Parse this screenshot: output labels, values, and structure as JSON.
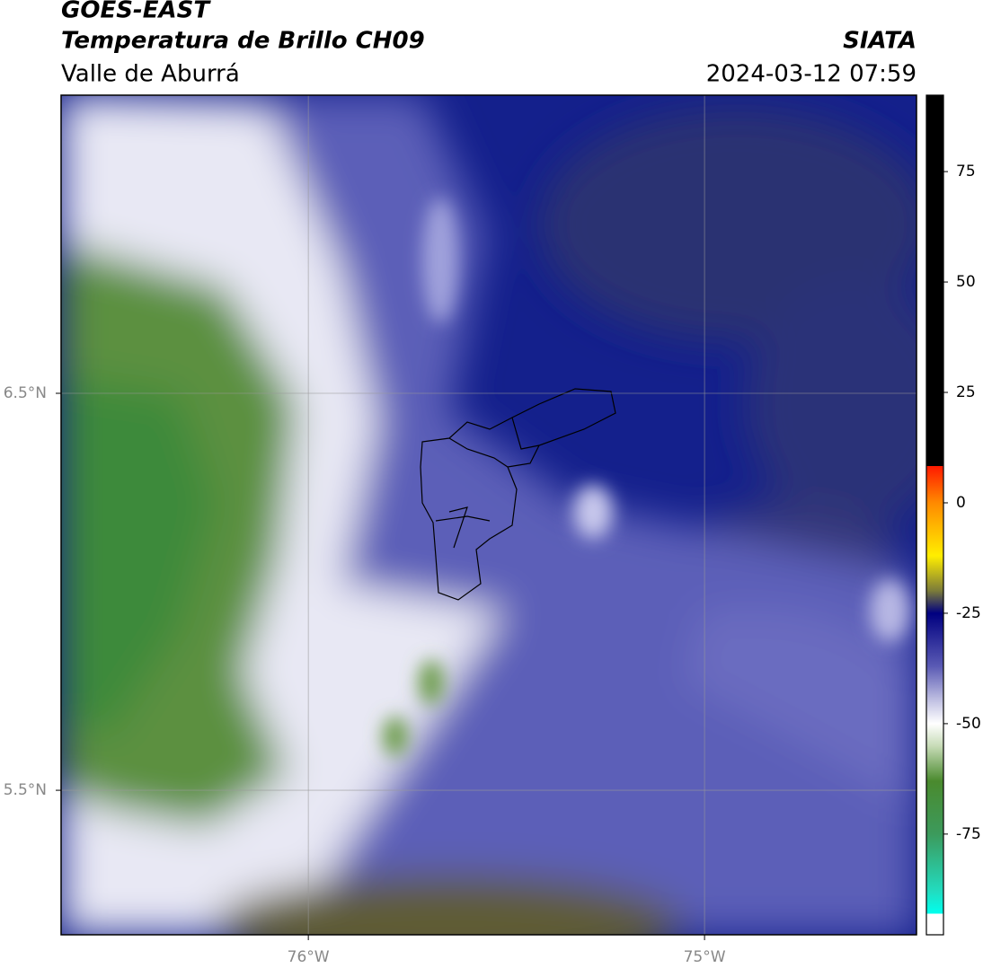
{
  "header": {
    "title": "GOES-EAST",
    "subtitle": "Temperatura de Brillo CH09",
    "region": "Valle de Aburrá",
    "agency": "SIATA",
    "timestamp": "2024-03-12 07:59"
  },
  "map": {
    "lonlim": [
      -76.624,
      -74.465
    ],
    "latlim": [
      5.136,
      7.251
    ],
    "lonticks": [
      {
        "value": -76,
        "label": "76°W"
      },
      {
        "value": -75,
        "label": "75°W"
      }
    ],
    "latticks": [
      {
        "value": 6.5,
        "label": "6.5°N"
      },
      {
        "value": 5.5,
        "label": "5.5°N"
      }
    ],
    "grid": true
  },
  "colorbar": {
    "lim": [
      -97.8,
      92.3
    ],
    "ticks": [
      75,
      50,
      25,
      0,
      -25,
      -50,
      -75
    ],
    "stops": [
      {
        "value": 92.3,
        "color": "#000000"
      },
      {
        "value": 8.3,
        "color": "#000000"
      },
      {
        "value": 8.3,
        "color": "#ff1a00"
      },
      {
        "value": 0,
        "color": "#ff8a00"
      },
      {
        "value": -12,
        "color": "#ffee00"
      },
      {
        "value": -20,
        "color": "#7a7a3a"
      },
      {
        "value": -25,
        "color": "#000080"
      },
      {
        "value": -37,
        "color": "#5a5ab4"
      },
      {
        "value": -45,
        "color": "#c4c4e4"
      },
      {
        "value": -50,
        "color": "#ffffff"
      },
      {
        "value": -55,
        "color": "#c8dcb8"
      },
      {
        "value": -63,
        "color": "#4a8a2e"
      },
      {
        "value": -75,
        "color": "#3c9a5c"
      },
      {
        "value": -88,
        "color": "#22dcc0"
      },
      {
        "value": -93,
        "color": "#00ffee"
      },
      {
        "value": -93,
        "color": "#ffffff"
      },
      {
        "value": -97.8,
        "color": "#ffffff"
      }
    ]
  }
}
